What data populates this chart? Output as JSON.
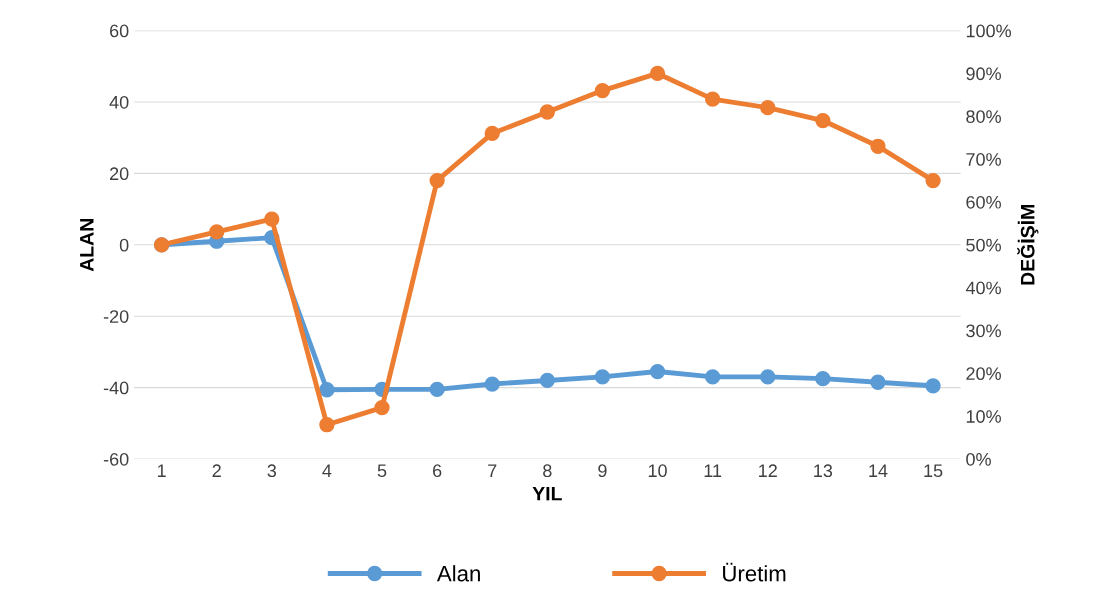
{
  "chart_data": {
    "type": "line",
    "categories": [
      "1",
      "2",
      "3",
      "4",
      "5",
      "6",
      "7",
      "8",
      "9",
      "10",
      "11",
      "12",
      "13",
      "14",
      "15"
    ],
    "xlabel": "YIL",
    "ylabel": "ALAN",
    "y2label": "DEĞİŞİM",
    "ylim": [
      -60,
      60
    ],
    "yticks": [
      -60,
      -40,
      -20,
      0,
      20,
      40,
      60
    ],
    "y2lim": [
      0,
      100
    ],
    "y2ticks": [
      {
        "value": 0,
        "label": "0%"
      },
      {
        "value": 10,
        "label": "10%"
      },
      {
        "value": 20,
        "label": "20%"
      },
      {
        "value": 30,
        "label": "30%"
      },
      {
        "value": 40,
        "label": "40%"
      },
      {
        "value": 50,
        "label": "50%"
      },
      {
        "value": 60,
        "label": "60%"
      },
      {
        "value": 70,
        "label": "70%"
      },
      {
        "value": 80,
        "label": "80%"
      },
      {
        "value": 90,
        "label": "90%"
      },
      {
        "value": 100,
        "label": "100%"
      }
    ],
    "grid": "y",
    "legend": "bottom",
    "marker": "circle",
    "line_style": "solid",
    "series": [
      {
        "name": "Alan",
        "color": "#5b9bd5",
        "values": [
          0,
          1,
          2,
          -40.6,
          -40.5,
          -40.5,
          -39,
          -38,
          -37,
          -35.5,
          -37,
          -37,
          -37.5,
          -38.5,
          -39.5
        ]
      },
      {
        "name": "Üretim",
        "color": "#ed7d31",
        "axis": "y2",
        "values": [
          50,
          53,
          56,
          8,
          12,
          65,
          76,
          81,
          86,
          90,
          84,
          82,
          79,
          73,
          65
        ]
      }
    ]
  }
}
